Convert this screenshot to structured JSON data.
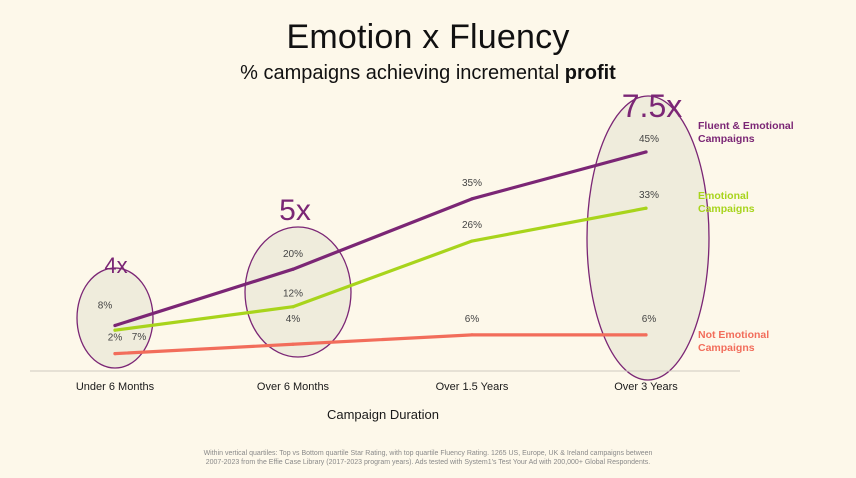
{
  "title": "Emotion x Fluency",
  "subtitle_prefix": "% campaigns achieving incremental ",
  "subtitle_bold": "profit",
  "chart_data": {
    "type": "line",
    "categories": [
      "Under 6 Months",
      "Over 6 Months",
      "Over 1.5 Years",
      "Over 3 Years"
    ],
    "xlabel": "Campaign Duration",
    "ylabel": "",
    "ylim": [
      0,
      50
    ],
    "grid": false,
    "legend_placement": "right",
    "series": [
      {
        "name": "Fluent & Emotional Campaigns",
        "values": [
          8,
          20,
          35,
          45
        ],
        "labels": [
          "8%",
          "20%",
          "35%",
          "45%"
        ],
        "color": "#7b2675"
      },
      {
        "name": "Emotional Campaigns",
        "values": [
          7,
          12,
          26,
          33
        ],
        "labels": [
          "7%",
          "12%",
          "26%",
          "33%"
        ],
        "color": "#a8d41c"
      },
      {
        "name": "Not Emotional Campaigns",
        "values": [
          2,
          4,
          6,
          6
        ],
        "labels": [
          "2%",
          "4%",
          "6%",
          "6%"
        ],
        "color": "#f26d5b"
      }
    ],
    "legend": [
      {
        "line1": "Fluent & Emotional",
        "line2": "Campaigns",
        "color": "#7b2675"
      },
      {
        "line1": "Emotional",
        "line2": "Campaigns",
        "color": "#a8d41c"
      },
      {
        "line1": "Not Emotional",
        "line2": "Campaigns",
        "color": "#f26d5b"
      }
    ],
    "multipliers": [
      "4x",
      "5x",
      "",
      "7.5x"
    ]
  },
  "footnote": {
    "line1": "Within vertical quartiles: Top vs Bottom quartile Star Rating, with top quartile Fluency Rating. 1265 US, Europe, UK & Ireland campaigns between",
    "line2": "2007-2023 from the Effie Case Library (2017-2023 program years). Ads tested with System1's Test Your Ad with 200,000+ Global Respondents."
  }
}
